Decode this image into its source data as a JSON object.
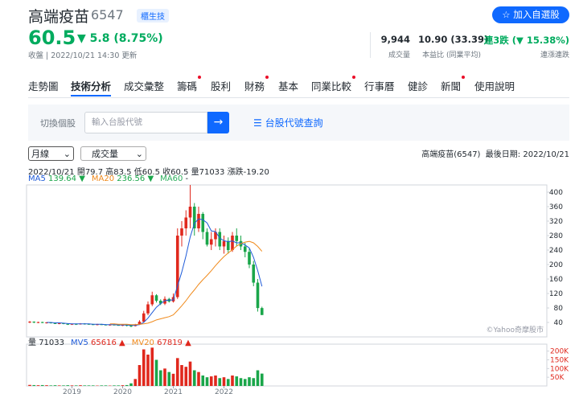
{
  "header": {
    "name": "高端疫苗",
    "code": "6547",
    "tag": "櫃生技",
    "button": "加入自選股",
    "price": "60.5",
    "change": "▼ 5.8 (8.75%)",
    "update": "收盤 | 2022/10/21 14:30 更新",
    "stats": [
      {
        "value": "9,944",
        "label": "成交量"
      },
      {
        "value": "10.90 (33.39)",
        "label": "本益比 (同業平均)"
      },
      {
        "value": "連3跌 (▼ 15.38%)",
        "label": "連漲連跌"
      }
    ]
  },
  "tabs": {
    "active": 1,
    "items": [
      {
        "label": "走勢圖",
        "dot": false
      },
      {
        "label": "技術分析",
        "dot": false
      },
      {
        "label": "成交彙整",
        "dot": false
      },
      {
        "label": "籌碼",
        "dot": true
      },
      {
        "label": "股利",
        "dot": false
      },
      {
        "label": "財務",
        "dot": true
      },
      {
        "label": "基本",
        "dot": false
      },
      {
        "label": "同業比較",
        "dot": true
      },
      {
        "label": "行事曆",
        "dot": false
      },
      {
        "label": "健診",
        "dot": false
      },
      {
        "label": "新聞",
        "dot": true
      },
      {
        "label": "使用說明",
        "dot": false
      }
    ]
  },
  "search": {
    "label": "切換個股",
    "placeholder": "輸入台股代號",
    "link": "台股代號查詢"
  },
  "controls": {
    "period": "月線",
    "indicator": "成交量",
    "info": "高端疫苗(6547)  最後日期: 2022/10/21"
  },
  "chart_data": {
    "type": "candlestick",
    "ohlc_text": "2022/10/21 開79.7 高83.5 低60.5 收60.5 量71033 漲跌-19.20",
    "ma_legend": [
      {
        "name": "MA5",
        "value": "139.64 ▼",
        "color": "#1f5bd8"
      },
      {
        "name": "MA20",
        "value": "236.56 ▼",
        "color": "#f08a1c"
      },
      {
        "name": "MA60",
        "value": "-",
        "color": "#2bae5c"
      }
    ],
    "vol_legend": [
      {
        "name": "量",
        "value": "71033",
        "color": "#232a31"
      },
      {
        "name": "MV5",
        "value": "65616 ▲",
        "color": "#1f5bd8"
      },
      {
        "name": "MV20",
        "value": "67819 ▲",
        "color": "#f08a1c"
      }
    ],
    "copyright": "©Yahoo奇摩股市",
    "up_color": "#e0281d",
    "down_color": "#1aa64a",
    "open": [
      41,
      42,
      40,
      41,
      39,
      40,
      38,
      37,
      38,
      36,
      35,
      36,
      35,
      37,
      36,
      35,
      34,
      35,
      34,
      33,
      34,
      33,
      32,
      33,
      31,
      30,
      34,
      42,
      65,
      90,
      115,
      100,
      92,
      105,
      98,
      110,
      280,
      300,
      330,
      360,
      300,
      340,
      290,
      255,
      270,
      290,
      250,
      265,
      240,
      280,
      265,
      250,
      235,
      200,
      150,
      79.7
    ],
    "high": [
      44,
      43,
      42,
      42,
      41,
      41,
      39,
      39,
      39,
      37,
      37,
      37,
      38,
      38,
      37,
      36,
      36,
      36,
      35,
      35,
      35,
      34,
      34,
      34,
      33,
      36,
      46,
      72,
      98,
      125,
      118,
      104,
      112,
      108,
      120,
      300,
      320,
      350,
      420,
      370,
      360,
      345,
      300,
      290,
      300,
      300,
      280,
      275,
      290,
      300,
      280,
      260,
      245,
      210,
      160,
      83.5
    ],
    "low": [
      38,
      38,
      38,
      38,
      37,
      37,
      36,
      35,
      35,
      33,
      33,
      33,
      34,
      34,
      34,
      33,
      32,
      33,
      32,
      31,
      32,
      31,
      30,
      29,
      27,
      29,
      33,
      40,
      60,
      85,
      95,
      88,
      88,
      95,
      95,
      105,
      250,
      280,
      300,
      280,
      290,
      270,
      250,
      240,
      250,
      240,
      230,
      230,
      235,
      250,
      240,
      220,
      190,
      140,
      70,
      60.5
    ],
    "close": [
      42,
      40,
      41,
      39,
      40,
      38,
      37,
      38,
      36,
      35,
      36,
      35,
      37,
      36,
      35,
      34,
      35,
      34,
      33,
      34,
      33,
      32,
      33,
      31,
      30,
      34,
      42,
      65,
      90,
      115,
      100,
      92,
      105,
      98,
      110,
      280,
      300,
      330,
      360,
      300,
      340,
      290,
      255,
      270,
      290,
      250,
      265,
      240,
      280,
      265,
      250,
      235,
      200,
      150,
      79.7,
      60.5
    ],
    "ma5": [
      null,
      null,
      null,
      null,
      40,
      40,
      39,
      39,
      38,
      37,
      36,
      36,
      36,
      36,
      36,
      35,
      35,
      35,
      34,
      34,
      34,
      33,
      33,
      33,
      32,
      32,
      34,
      40,
      52,
      67,
      82,
      92,
      100,
      102,
      102,
      141,
      179,
      224,
      276,
      314,
      326,
      324,
      315,
      293,
      291,
      273,
      266,
      263,
      265,
      260,
      260,
      254,
      246,
      220,
      183,
      139.64
    ],
    "ma20": [
      null,
      null,
      null,
      null,
      null,
      null,
      null,
      null,
      null,
      null,
      null,
      null,
      null,
      null,
      null,
      null,
      null,
      null,
      null,
      36,
      36,
      35,
      35,
      35,
      34,
      34,
      35,
      36,
      38,
      42,
      47,
      50,
      53,
      56,
      61,
      73,
      86,
      100,
      116,
      130,
      145,
      158,
      170,
      183,
      197,
      210,
      222,
      232,
      241,
      251,
      258,
      262,
      264,
      260,
      250,
      236.56
    ],
    "volume": [
      6000,
      5000,
      4000,
      5000,
      4000,
      3000,
      4000,
      3000,
      3000,
      4000,
      3000,
      3000,
      4000,
      3000,
      3000,
      3000,
      2000,
      3000,
      3000,
      2000,
      3000,
      3000,
      4000,
      5000,
      15000,
      40000,
      120000,
      210000,
      180000,
      220000,
      150000,
      90000,
      100000,
      80000,
      70000,
      160000,
      120000,
      110000,
      140000,
      90000,
      80000,
      60000,
      50000,
      55000,
      60000,
      45000,
      50000,
      40000,
      60000,
      55000,
      45000,
      40000,
      50000,
      45000,
      90000,
      71033
    ],
    "ylim": [
      0,
      420
    ],
    "yticks": [
      40,
      80,
      120,
      160,
      200,
      240,
      280,
      320,
      360,
      400
    ],
    "vlim": [
      0,
      240000
    ],
    "vticks": [
      {
        "value": 50000,
        "label": "50K"
      },
      {
        "value": 100000,
        "label": "100K"
      },
      {
        "value": 150000,
        "label": "150K"
      },
      {
        "value": 200000,
        "label": "200K"
      }
    ],
    "xticks": [
      {
        "value": 10,
        "label": "2019"
      },
      {
        "value": 22,
        "label": "2020"
      },
      {
        "value": 34,
        "label": "2021"
      },
      {
        "value": 46,
        "label": "2022"
      }
    ]
  }
}
